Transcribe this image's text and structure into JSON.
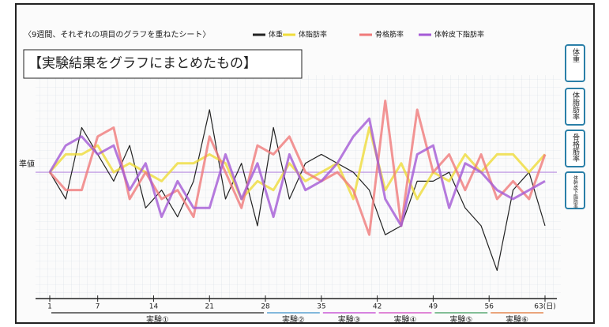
{
  "chart_data": {
    "type": "line",
    "subtitle": "〈9週間、それぞれの項目のグラフを重ねたシート〉",
    "title": "【実験結果をグラフにまとめたもの】",
    "baseline_label": "準値",
    "baseline": 0,
    "x": [
      1,
      3,
      5,
      7,
      9,
      11,
      13,
      15,
      17,
      19,
      21,
      23,
      25,
      27,
      29,
      31,
      33,
      35,
      37,
      39,
      41,
      43,
      45,
      47,
      49,
      51,
      53,
      55,
      57,
      59,
      61,
      63
    ],
    "series": [
      {
        "name": "体重",
        "color": "#222222",
        "values": [
          0,
          -3,
          5,
          2,
          -1,
          3,
          -4,
          -2,
          -5,
          -1,
          7,
          -3,
          1,
          -6,
          5,
          -3,
          1,
          2,
          1,
          0,
          -2,
          -7,
          -6,
          -1,
          -1,
          0,
          -4,
          -6,
          -11,
          -2,
          0,
          -6
        ]
      },
      {
        "name": "体脂肪率",
        "color": "#efdc3a",
        "values": [
          0,
          2,
          2,
          3,
          0,
          1,
          0,
          -1,
          1,
          1,
          2,
          1,
          -3,
          -1,
          -2,
          1,
          -1,
          0,
          1,
          -3,
          5,
          -2,
          1,
          -3,
          0,
          -1,
          2,
          0,
          2,
          2,
          0,
          2
        ]
      },
      {
        "name": "骨格筋率",
        "color": "#f07a7a",
        "values": [
          0,
          -2,
          -2,
          4,
          5,
          -3,
          0,
          -3,
          -2,
          -5,
          4,
          0,
          -4,
          3,
          2,
          4,
          0,
          -1,
          0,
          -2,
          -7,
          8,
          -6,
          7,
          0,
          2,
          -2,
          2,
          -3,
          -1,
          -3,
          2
        ]
      },
      {
        "name": "体幹皮下脂肪率",
        "color": "#a45ad6",
        "values": [
          0,
          3,
          4,
          2,
          3,
          -2,
          1,
          -5,
          -1,
          -4,
          -4,
          2,
          -3,
          1,
          -5,
          2,
          -2,
          -1,
          1,
          4,
          6,
          -3,
          -6,
          2,
          3,
          -4,
          1,
          0,
          -2,
          -3,
          -2,
          -1
        ]
      }
    ],
    "xlim": [
      1,
      63
    ],
    "xticks": [
      1,
      7,
      14,
      21,
      28,
      35,
      42,
      49,
      56,
      {
        "value": 63,
        "label": "63(日)"
      }
    ],
    "ylim": [
      -13,
      10
    ],
    "experiments": [
      {
        "label": "実験①",
        "from": 1,
        "to": 28,
        "color": "#222222"
      },
      {
        "label": "実験②",
        "from": 28,
        "to": 35,
        "color": "#3a8fc9"
      },
      {
        "label": "実験③",
        "from": 35,
        "to": 42,
        "color": "#c03ad0"
      },
      {
        "label": "実験④",
        "from": 42,
        "to": 49,
        "color": "#d040c0"
      },
      {
        "label": "実験⑤",
        "from": 49,
        "to": 56,
        "color": "#3a9a5a"
      },
      {
        "label": "実験⑥",
        "from": 56,
        "to": 63,
        "color": "#e07030"
      }
    ]
  }
}
